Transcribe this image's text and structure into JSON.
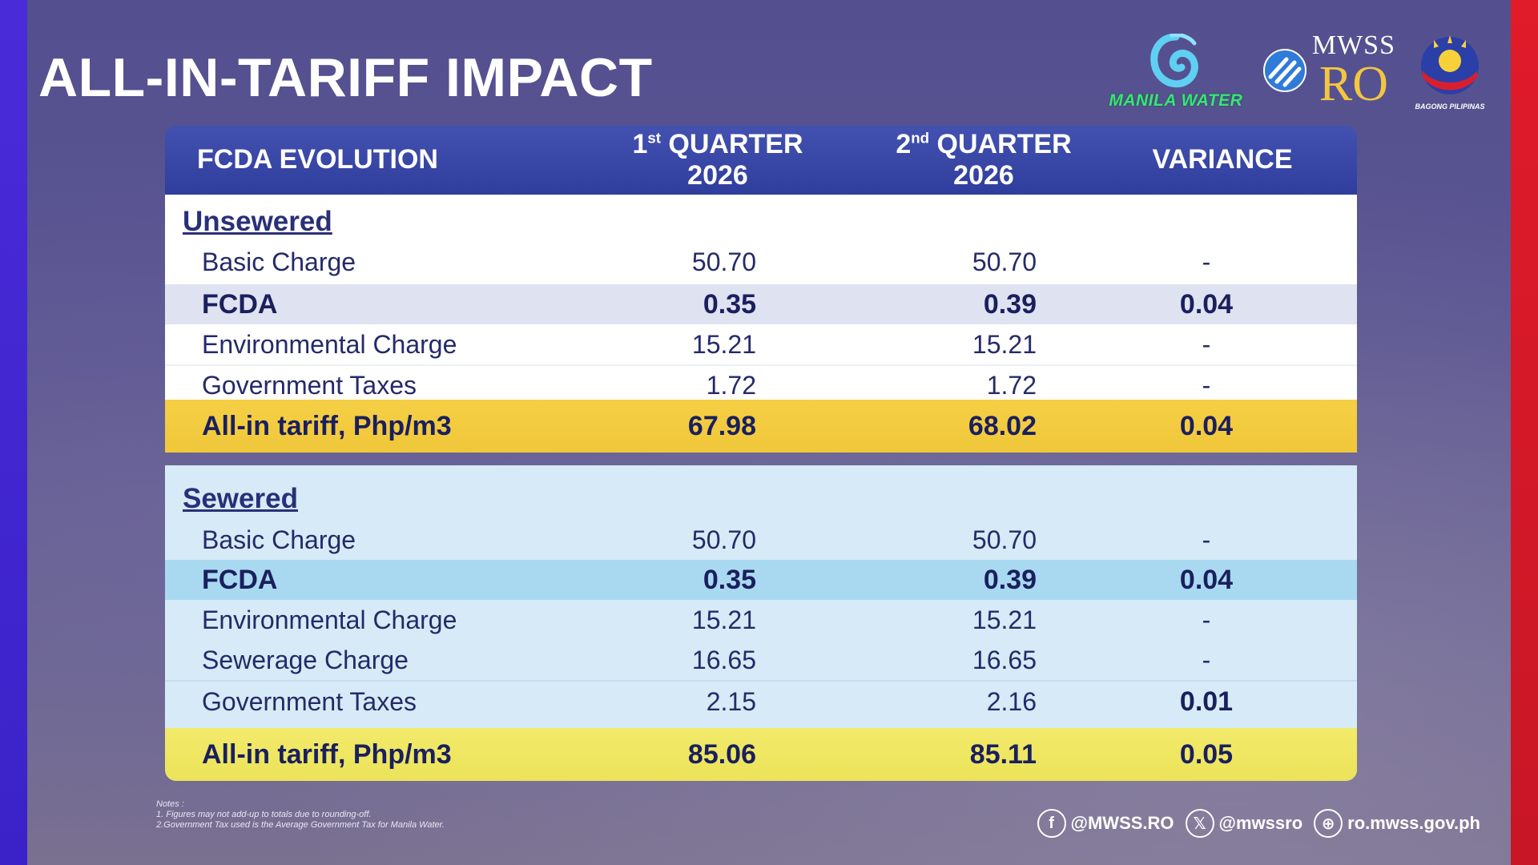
{
  "title": "ALL-IN-TARIFF IMPACT",
  "logos": {
    "manila_water": "MANILA WATER",
    "mwss_top": "MWSS",
    "mwss_bottom": "RO",
    "bagong_pilipinas": "BAGONG PILIPINAS"
  },
  "table": {
    "headers": {
      "col0": "FCDA EVOLUTION",
      "col1_pre": "1",
      "col1_sup": "st",
      "col1_post": " QUARTER",
      "col1_year": "2026",
      "col2_pre": "2",
      "col2_sup": "nd",
      "col2_post": " QUARTER",
      "col2_year": "2026",
      "col3": "VARIANCE"
    },
    "unsewered": {
      "label": "Unsewered",
      "rows": [
        {
          "item": "Basic Charge",
          "q1": "50.70",
          "q2": "50.70",
          "variance": "-"
        },
        {
          "item": "FCDA",
          "q1": "0.35",
          "q2": "0.39",
          "variance": "0.04"
        },
        {
          "item": "Environmental Charge",
          "q1": "15.21",
          "q2": "15.21",
          "variance": "-"
        },
        {
          "item": "Government Taxes",
          "q1": "1.72",
          "q2": "1.72",
          "variance": "-"
        }
      ],
      "total": {
        "item": "All-in tariff, Php/m3",
        "q1": "67.98",
        "q2": "68.02",
        "variance": "0.04"
      }
    },
    "sewered": {
      "label": "Sewered",
      "rows": [
        {
          "item": "Basic Charge",
          "q1": "50.70",
          "q2": "50.70",
          "variance": "-"
        },
        {
          "item": "FCDA",
          "q1": "0.35",
          "q2": "0.39",
          "variance": "0.04"
        },
        {
          "item": "Environmental Charge",
          "q1": "15.21",
          "q2": "15.21",
          "variance": "-"
        },
        {
          "item": "Sewerage Charge",
          "q1": "16.65",
          "q2": "16.65",
          "variance": "-"
        },
        {
          "item": "Government Taxes",
          "q1": "2.15",
          "q2": "2.16",
          "variance": "0.01"
        }
      ],
      "total": {
        "item": "All-in tariff, Php/m3",
        "q1": "85.06",
        "q2": "85.11",
        "variance": "0.05"
      }
    }
  },
  "notes": {
    "heading": "Notes :",
    "line1": "1. Figures may not add-up to totals due to rounding-off.",
    "line2": "2.Government Tax used is the Average Government Tax for Manila Water."
  },
  "socials": {
    "facebook": "@MWSS.RO",
    "x": "@mwssro",
    "web": "ro.mwss.gov.ph"
  },
  "colors": {
    "header_blue": "#2f3d9c",
    "unsewered_total": "#f0c73a",
    "sewered_total": "#ece35a",
    "fcda_unsewered": "#dfe2f0",
    "fcda_sewered": "#a8d9f0",
    "sewered_bg": "#d6ebf7",
    "text_navy": "#1a1f5e"
  }
}
